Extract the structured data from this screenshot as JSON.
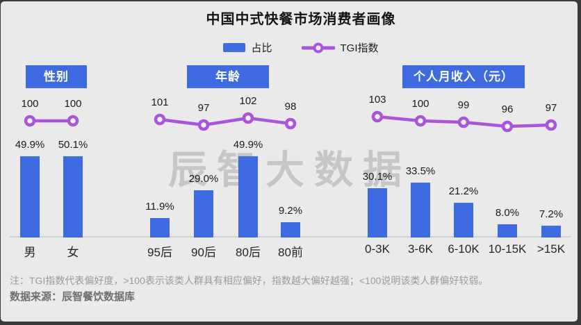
{
  "title": "中国中式快餐市场消费者画像",
  "legend": {
    "bar_label": "占比",
    "line_label": "TGI指数"
  },
  "watermark": "辰智大数据",
  "notes": {
    "tgi_note": "注：TGI指数代表偏好度，>100表示该类人群具有相应偏好，指数越大偏好越强；<100说明该类人群偏好较弱。",
    "source": "数据来源：辰智餐饮数据库"
  },
  "colors": {
    "bar": "#3E6BE1",
    "tgi_line": "#A855D8",
    "background": "#EAEAEA",
    "header_text": "#FFFFFF",
    "axis": "#D2D2D2"
  },
  "chart_data": [
    {
      "type": "bar",
      "title": "性别",
      "categories": [
        "男",
        "女"
      ],
      "series": [
        {
          "name": "占比",
          "kind": "bar",
          "unit": "%",
          "values": [
            49.9,
            50.1
          ]
        },
        {
          "name": "TGI指数",
          "kind": "line",
          "values": [
            100,
            100
          ]
        }
      ]
    },
    {
      "type": "bar",
      "title": "年龄",
      "categories": [
        "95后",
        "90后",
        "80后",
        "80前"
      ],
      "series": [
        {
          "name": "占比",
          "kind": "bar",
          "unit": "%",
          "values": [
            11.9,
            29.0,
            49.9,
            9.2
          ]
        },
        {
          "name": "TGI指数",
          "kind": "line",
          "values": [
            101,
            97,
            102,
            98
          ]
        }
      ]
    },
    {
      "type": "bar",
      "title": "个人月收入（元）",
      "categories": [
        "0-3K",
        "3-6K",
        "6-10K",
        "10-15K",
        ">15K"
      ],
      "series": [
        {
          "name": "占比",
          "kind": "bar",
          "unit": "%",
          "values": [
            30.1,
            33.5,
            21.2,
            8.0,
            7.2
          ]
        },
        {
          "name": "TGI指数",
          "kind": "line",
          "values": [
            103,
            100,
            99,
            96,
            97
          ]
        }
      ]
    }
  ]
}
